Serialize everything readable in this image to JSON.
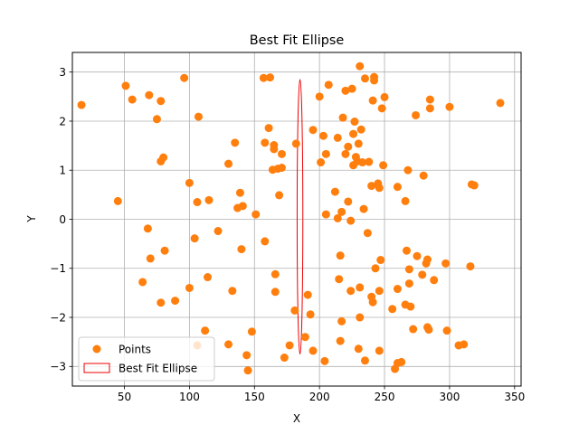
{
  "chart_data": {
    "type": "scatter",
    "title": "Best Fit Ellipse",
    "xlabel": "X",
    "ylabel": "Y",
    "xlim": [
      10,
      355
    ],
    "ylim": [
      -3.4,
      3.4
    ],
    "xticks": [
      50,
      100,
      150,
      200,
      250,
      300,
      350
    ],
    "yticks": [
      -3,
      -2,
      -1,
      0,
      1,
      2,
      3
    ],
    "grid": true,
    "legend_position": "lower-left",
    "series": [
      {
        "name": "Points",
        "kind": "scatter",
        "color": "#ff7f0e",
        "points": [
          [
            17,
            2.33
          ],
          [
            51,
            2.72
          ],
          [
            56,
            2.44
          ],
          [
            69,
            2.53
          ],
          [
            75,
            2.04
          ],
          [
            78,
            2.41
          ],
          [
            78,
            1.18
          ],
          [
            80,
            1.26
          ],
          [
            96,
            2.88
          ],
          [
            107,
            2.09
          ],
          [
            45,
            0.37
          ],
          [
            68,
            -0.19
          ],
          [
            70,
            -0.8
          ],
          [
            64,
            -1.28
          ],
          [
            78,
            -1.7
          ],
          [
            81,
            -0.64
          ],
          [
            89,
            -1.66
          ],
          [
            100,
            0.74
          ],
          [
            100,
            -1.4
          ],
          [
            104,
            -0.39
          ],
          [
            106,
            0.35
          ],
          [
            106,
            -2.57
          ],
          [
            112,
            -2.27
          ],
          [
            114,
            -1.18
          ],
          [
            115,
            0.39
          ],
          [
            122,
            -0.24
          ],
          [
            130,
            1.13
          ],
          [
            130,
            -2.55
          ],
          [
            133,
            -1.46
          ],
          [
            135,
            1.56
          ],
          [
            137,
            0.23
          ],
          [
            139,
            0.54
          ],
          [
            140,
            -0.61
          ],
          [
            141,
            0.27
          ],
          [
            144,
            -2.77
          ],
          [
            145,
            -3.08
          ],
          [
            148,
            -2.29
          ],
          [
            151,
            0.1
          ],
          [
            157,
            2.88
          ],
          [
            158,
            1.56
          ],
          [
            158,
            -0.45
          ],
          [
            161,
            1.86
          ],
          [
            162,
            2.89
          ],
          [
            164,
            1.01
          ],
          [
            165,
            1.51
          ],
          [
            165,
            1.43
          ],
          [
            166,
            -1.12
          ],
          [
            166,
            -1.48
          ],
          [
            168,
            1.03
          ],
          [
            169,
            0.49
          ],
          [
            171,
            1.33
          ],
          [
            171,
            1.05
          ],
          [
            173,
            -2.82
          ],
          [
            177,
            -2.57
          ],
          [
            181,
            -1.86
          ],
          [
            182,
            1.54
          ],
          [
            189,
            -2.4
          ],
          [
            191,
            -1.54
          ],
          [
            193,
            -1.94
          ],
          [
            195,
            1.82
          ],
          [
            195,
            -2.68
          ],
          [
            200,
            2.5
          ],
          [
            201,
            1.16
          ],
          [
            203,
            1.7
          ],
          [
            204,
            -2.89
          ],
          [
            205,
            1.33
          ],
          [
            205,
            0.1
          ],
          [
            207,
            2.74
          ],
          [
            212,
            0.56
          ],
          [
            214,
            1.66
          ],
          [
            214,
            0.02
          ],
          [
            215,
            -1.22
          ],
          [
            216,
            -2.48
          ],
          [
            216,
            -0.74
          ],
          [
            217,
            -2.08
          ],
          [
            217,
            0.15
          ],
          [
            218,
            2.07
          ],
          [
            220,
            2.62
          ],
          [
            220,
            1.33
          ],
          [
            222,
            1.48
          ],
          [
            222,
            0.36
          ],
          [
            224,
            -0.03
          ],
          [
            224,
            -1.46
          ],
          [
            225,
            2.66
          ],
          [
            226,
            1.74
          ],
          [
            226,
            1.1
          ],
          [
            227,
            1.99
          ],
          [
            228,
            1.27
          ],
          [
            229,
            1.18
          ],
          [
            230,
            1.54
          ],
          [
            230,
            -2.64
          ],
          [
            231,
            3.12
          ],
          [
            231,
            -2.0
          ],
          [
            231,
            -1.39
          ],
          [
            232,
            1.83
          ],
          [
            233,
            1.16
          ],
          [
            234,
            0.21
          ],
          [
            235,
            2.87
          ],
          [
            235,
            -2.88
          ],
          [
            237,
            -0.28
          ],
          [
            238,
            1.17
          ],
          [
            240,
            0.68
          ],
          [
            240,
            -1.58
          ],
          [
            241,
            2.42
          ],
          [
            241,
            -1.69
          ],
          [
            242,
            2.9
          ],
          [
            242,
            2.83
          ],
          [
            243,
            -1.0
          ],
          [
            245,
            0.73
          ],
          [
            246,
            0.64
          ],
          [
            246,
            -2.68
          ],
          [
            246,
            -1.46
          ],
          [
            247,
            -0.83
          ],
          [
            248,
            2.26
          ],
          [
            249,
            1.1
          ],
          [
            250,
            2.49
          ],
          [
            256,
            -1.83
          ],
          [
            258,
            -3.05
          ],
          [
            260,
            -1.42
          ],
          [
            260,
            0.66
          ],
          [
            260,
            -2.93
          ],
          [
            263,
            -2.91
          ],
          [
            266,
            0.37
          ],
          [
            266,
            -1.74
          ],
          [
            267,
            -0.64
          ],
          [
            268,
            1.0
          ],
          [
            269,
            -1.02
          ],
          [
            269,
            -1.31
          ],
          [
            270,
            -1.78
          ],
          [
            272,
            -2.24
          ],
          [
            274,
            2.12
          ],
          [
            275,
            -0.75
          ],
          [
            279,
            -1.13
          ],
          [
            280,
            0.89
          ],
          [
            282,
            -0.9
          ],
          [
            283,
            -2.2
          ],
          [
            283,
            -0.82
          ],
          [
            284,
            -2.25
          ],
          [
            285,
            2.44
          ],
          [
            285,
            2.26
          ],
          [
            288,
            -1.24
          ],
          [
            297,
            -0.9
          ],
          [
            298,
            -2.27
          ],
          [
            300,
            2.29
          ],
          [
            307,
            -2.57
          ],
          [
            311,
            -2.55
          ],
          [
            316,
            -0.96
          ],
          [
            317,
            0.71
          ],
          [
            319,
            0.69
          ],
          [
            339,
            2.37
          ]
        ]
      },
      {
        "name": "Best Fit Ellipse",
        "kind": "ellipse",
        "color": "#ee0000",
        "center": [
          185,
          0.05
        ],
        "semi_axis_x": 2.2,
        "semi_axis_y": 2.8
      }
    ]
  }
}
